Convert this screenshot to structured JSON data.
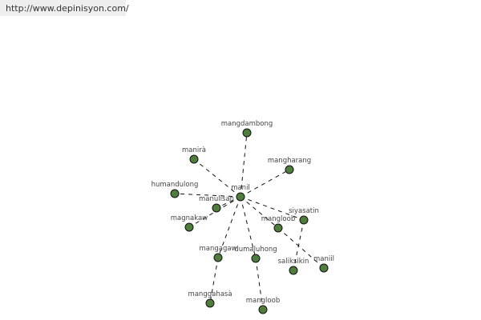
{
  "url": "http://www.depinisyon.com/",
  "graph": {
    "node_color": "#4e7d3e",
    "center": "manil",
    "nodes": [
      {
        "id": "n0",
        "label": "manil"
      },
      {
        "id": "n1",
        "label": "mangdambong"
      },
      {
        "id": "n2",
        "label": "manirà"
      },
      {
        "id": "n3",
        "label": "mangharang"
      },
      {
        "id": "n4",
        "label": "humandulong"
      },
      {
        "id": "n5",
        "label": "manulisan"
      },
      {
        "id": "n6",
        "label": "magnakaw"
      },
      {
        "id": "n7",
        "label": "siyasatin"
      },
      {
        "id": "n8",
        "label": "mangloob"
      },
      {
        "id": "n9",
        "label": "mangagaw"
      },
      {
        "id": "n10",
        "label": "dumaluhong"
      },
      {
        "id": "n11",
        "label": "saliksikin"
      },
      {
        "id": "n12",
        "label": "maniil"
      },
      {
        "id": "n13",
        "label": "manggahasà"
      },
      {
        "id": "n14",
        "label": "mangloob"
      }
    ],
    "edges": [
      [
        "n0",
        "n1"
      ],
      [
        "n0",
        "n2"
      ],
      [
        "n0",
        "n3"
      ],
      [
        "n0",
        "n4"
      ],
      [
        "n0",
        "n5"
      ],
      [
        "n0",
        "n6"
      ],
      [
        "n0",
        "n7"
      ],
      [
        "n0",
        "n8"
      ],
      [
        "n0",
        "n9"
      ],
      [
        "n0",
        "n10"
      ],
      [
        "n7",
        "n11"
      ],
      [
        "n8",
        "n12"
      ],
      [
        "n9",
        "n13"
      ],
      [
        "n10",
        "n14"
      ]
    ]
  }
}
